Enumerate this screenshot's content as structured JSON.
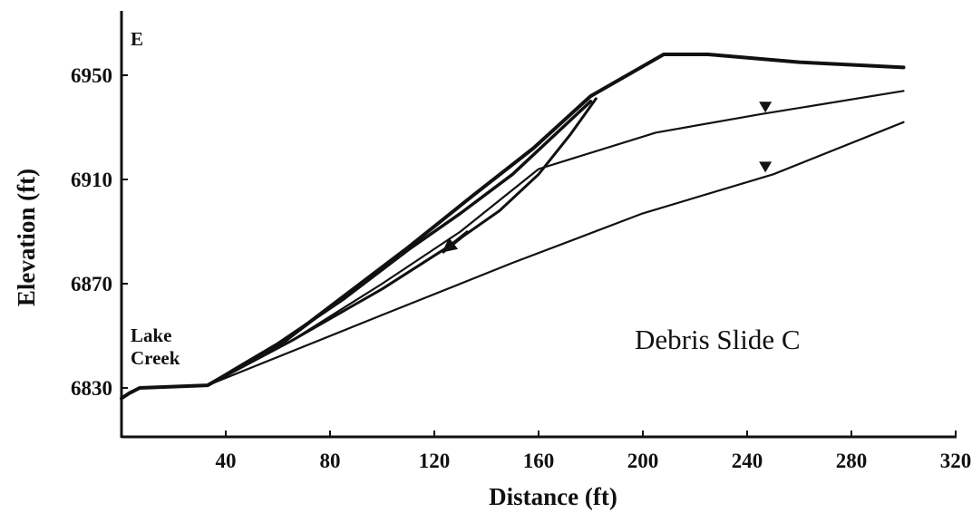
{
  "chart_data": {
    "type": "line",
    "title": "Debris Slide C",
    "xlabel": "Distance (ft)",
    "ylabel": "Elevation (ft)",
    "xlim": [
      0,
      320
    ],
    "ylim": [
      6812,
      6975
    ],
    "x_ticks": [
      40,
      80,
      120,
      160,
      200,
      240,
      280,
      320
    ],
    "y_ticks": [
      6830,
      6870,
      6910,
      6950
    ],
    "corner_label": "E",
    "stream_label_line1": "Lake",
    "stream_label_line2": "Creek",
    "grid": false,
    "series": [
      {
        "role": "ground-surface",
        "points": [
          [
            0,
            6826
          ],
          [
            3,
            6828
          ],
          [
            7,
            6830
          ],
          [
            33,
            6831
          ],
          [
            60,
            6846
          ],
          [
            85,
            6865
          ],
          [
            110,
            6884
          ],
          [
            135,
            6904
          ],
          [
            158,
            6922
          ],
          [
            180,
            6942
          ],
          [
            208,
            6958
          ],
          [
            225,
            6958
          ],
          [
            260,
            6955
          ],
          [
            300,
            6953
          ]
        ]
      },
      {
        "role": "slide-surface",
        "points": [
          [
            33,
            6831
          ],
          [
            60,
            6847
          ],
          [
            85,
            6864
          ],
          [
            110,
            6883
          ],
          [
            130,
            6897
          ],
          [
            150,
            6912
          ],
          [
            165,
            6926
          ],
          [
            180,
            6940
          ]
        ]
      },
      {
        "role": "failure-plane",
        "points": [
          [
            33,
            6831
          ],
          [
            65,
            6848
          ],
          [
            100,
            6868
          ],
          [
            125,
            6884
          ],
          [
            145,
            6898
          ],
          [
            160,
            6912
          ],
          [
            172,
            6927
          ],
          [
            182,
            6941
          ]
        ]
      },
      {
        "role": "perched-water-table",
        "points": [
          [
            33,
            6831
          ],
          [
            65,
            6848
          ],
          [
            100,
            6870
          ],
          [
            130,
            6890
          ],
          [
            160,
            6914
          ],
          [
            205,
            6928
          ],
          [
            245,
            6935
          ],
          [
            300,
            6944
          ]
        ]
      },
      {
        "role": "lower-water-table",
        "points": [
          [
            33,
            6831
          ],
          [
            100,
            6858
          ],
          [
            150,
            6878
          ],
          [
            200,
            6897
          ],
          [
            250,
            6912
          ],
          [
            300,
            6932
          ]
        ]
      }
    ],
    "water_table_markers": [
      {
        "x": 247,
        "y": 6936
      },
      {
        "x": 247,
        "y": 6913
      }
    ],
    "movement_arrow": {
      "from": [
        133,
        6890
      ],
      "to": [
        123,
        6882
      ]
    }
  }
}
